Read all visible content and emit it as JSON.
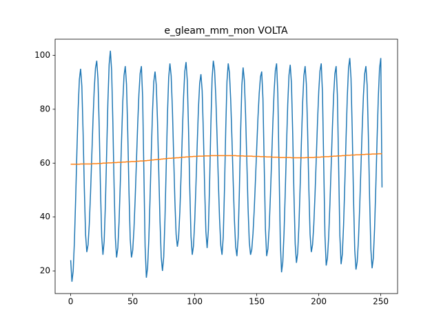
{
  "chart_data": {
    "type": "line",
    "title": "e_gleam_mm_mon VOLTA",
    "xlim": [
      -12.55,
      263.55
    ],
    "xticks": [
      0,
      50,
      100,
      150,
      200,
      250
    ],
    "ylim": [
      11.6,
      106.0
    ],
    "yticks": [
      20,
      40,
      60,
      80,
      100
    ],
    "series": [
      {
        "color": "#1f77b4",
        "values": [
          24,
          16,
          19.9,
          30.9,
          46.7,
          64.3,
          80.1,
          91.1,
          95,
          88.5,
          71.5,
          50.5,
          33.5,
          27,
          29.7,
          37.4,
          48.9,
          62.5,
          76.1,
          87.6,
          95.3,
          98,
          91.2,
          73.2,
          50.8,
          32.8,
          26,
          31.1,
          44.9,
          63.9,
          82.8,
          96.6,
          101.7,
          94.4,
          75.2,
          51.5,
          32.3,
          25,
          28.5,
          38.3,
          52.6,
          68.4,
          82.7,
          92.5,
          96,
          89.3,
          71.5,
          49.5,
          31.7,
          25,
          27.7,
          35.4,
          46.9,
          60.5,
          74.1,
          85.6,
          93.3,
          96,
          84.5,
          56.8,
          29,
          17.5,
          21.2,
          31.9,
          47.3,
          64.2,
          79.6,
          90.3,
          94,
          89,
          75.5,
          57,
          38.5,
          25,
          20,
          25.2,
          39.3,
          58.5,
          77.8,
          91.8,
          97,
          92.4,
          80,
          63,
          46,
          33.6,
          29,
          32.4,
          41.9,
          55.6,
          70.9,
          84.6,
          94.1,
          97.5,
          90.7,
          72.8,
          50.7,
          32.8,
          26,
          29.3,
          38.6,
          52.1,
          66.9,
          80.4,
          89.7,
          93,
          86.9,
          70.7,
          50.8,
          34.6,
          28.5,
          35.1,
          52.5,
          74,
          91.4,
          98,
          94.5,
          84.5,
          70,
          54,
          39.5,
          29.5,
          26,
          32.7,
          50.5,
          72.5,
          90.3,
          97,
          93.5,
          83.6,
          69.2,
          53.3,
          38.9,
          29,
          25.5,
          32.2,
          49.7,
          71.4,
          88.9,
          95.5,
          90.8,
          78.1,
          60.8,
          43.4,
          30.7,
          26,
          28,
          34,
          43,
          54.1,
          65.9,
          77,
          86,
          92,
          94,
          84,
          59.8,
          35.5,
          25.5,
          28.2,
          35.9,
          47.6,
          61.3,
          74.9,
          86.6,
          94.3,
          97,
          85.7,
          58.3,
          30.8,
          19.5,
          23.3,
          34,
          49.5,
          66.5,
          82,
          92.7,
          96.5,
          89.5,
          71.1,
          48.4,
          30,
          23,
          26.6,
          36.7,
          51.4,
          67.6,
          82.3,
          92.4,
          96,
          89.4,
          72.2,
          50.8,
          33.6,
          27,
          29.7,
          37.2,
          48.6,
          62,
          75.4,
          86.8,
          94.3,
          97,
          86,
          59.5,
          33,
          22,
          24.8,
          32.8,
          44.9,
          59,
          73.1,
          85.2,
          93.2,
          96,
          85.3,
          59.3,
          33.2,
          22.5,
          26.2,
          36.9,
          52.3,
          69.2,
          84.6,
          95.3,
          99,
          91.5,
          71.9,
          47.6,
          27.9,
          20.5,
          23.4,
          31.5,
          43.8,
          58.3,
          72.7,
          85,
          93.1,
          96,
          88.9,
          70.1,
          46.9,
          28.1,
          21,
          24.8,
          35.7,
          51.3,
          68.7,
          84.3,
          95.2,
          99,
          51
        ]
      },
      {
        "color": "#ff7f0e",
        "values": [
          59.6,
          59.6,
          59.6,
          59.6,
          59.6,
          59.6,
          59.6,
          59.6,
          59.7,
          59.7,
          59.7,
          59.7,
          59.7,
          59.7,
          59.7,
          59.7,
          59.7,
          59.7,
          59.8,
          59.8,
          59.8,
          59.8,
          59.9,
          59.9,
          59.9,
          59.9,
          60.0,
          60.0,
          60.0,
          60.0,
          60.1,
          60.1,
          60.1,
          60.1,
          60.2,
          60.2,
          60.2,
          60.2,
          60.3,
          60.3,
          60.3,
          60.3,
          60.4,
          60.4,
          60.4,
          60.5,
          60.5,
          60.5,
          60.5,
          60.6,
          60.6,
          60.6,
          60.6,
          60.7,
          60.7,
          60.7,
          60.8,
          60.8,
          60.8,
          60.8,
          60.9,
          60.9,
          61.0,
          61.0,
          61.1,
          61.1,
          61.2,
          61.2,
          61.3,
          61.3,
          61.4,
          61.4,
          61.4,
          61.5,
          61.5,
          61.6,
          61.6,
          61.7,
          61.7,
          61.8,
          61.8,
          61.8,
          61.9,
          61.9,
          61.9,
          62.0,
          62.0,
          62.0,
          62.1,
          62.1,
          62.2,
          62.2,
          62.2,
          62.3,
          62.3,
          62.3,
          62.4,
          62.4,
          62.4,
          62.5,
          62.5,
          62.5,
          62.5,
          62.6,
          62.6,
          62.6,
          62.6,
          62.6,
          62.7,
          62.7,
          62.7,
          62.7,
          62.7,
          62.8,
          62.8,
          62.8,
          62.8,
          62.8,
          62.8,
          62.8,
          62.8,
          62.8,
          62.8,
          62.8,
          62.8,
          62.8,
          62.8,
          62.8,
          62.8,
          62.8,
          62.8,
          62.8,
          62.8,
          62.8,
          62.7,
          62.7,
          62.7,
          62.7,
          62.7,
          62.7,
          62.6,
          62.6,
          62.6,
          62.6,
          62.6,
          62.6,
          62.6,
          62.5,
          62.5,
          62.5,
          62.5,
          62.5,
          62.5,
          62.4,
          62.4,
          62.4,
          62.4,
          62.4,
          62.3,
          62.3,
          62.3,
          62.3,
          62.3,
          62.2,
          62.2,
          62.2,
          62.2,
          62.2,
          62.1,
          62.1,
          62.1,
          62.1,
          62.1,
          62.1,
          62.1,
          62.1,
          62.1,
          62.1,
          62.0,
          62.0,
          62.0,
          62.0,
          62.0,
          62.0,
          62.0,
          62.0,
          62.0,
          62.0,
          62.0,
          62.0,
          62.1,
          62.1,
          62.1,
          62.1,
          62.1,
          62.1,
          62.1,
          62.2,
          62.2,
          62.2,
          62.2,
          62.2,
          62.3,
          62.3,
          62.3,
          62.4,
          62.4,
          62.4,
          62.4,
          62.5,
          62.5,
          62.5,
          62.6,
          62.6,
          62.6,
          62.7,
          62.7,
          62.7,
          62.7,
          62.8,
          62.8,
          62.8,
          62.9,
          62.9,
          62.9,
          62.9,
          63.0,
          63.0,
          63.0,
          63.0,
          63.1,
          63.1,
          63.1,
          63.1,
          63.2,
          63.2,
          63.2,
          63.2,
          63.3,
          63.3,
          63.3,
          63.3,
          63.3,
          63.4,
          63.4,
          63.4,
          63.4,
          63.4,
          63.5,
          63.5,
          63.5,
          63.5
        ]
      }
    ]
  }
}
